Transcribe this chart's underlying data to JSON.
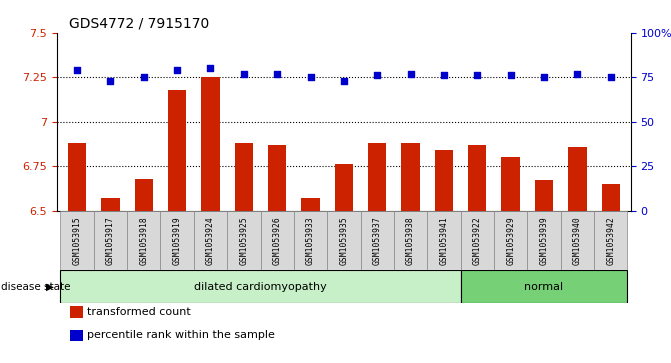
{
  "title": "GDS4772 / 7915170",
  "samples": [
    "GSM1053915",
    "GSM1053917",
    "GSM1053918",
    "GSM1053919",
    "GSM1053924",
    "GSM1053925",
    "GSM1053926",
    "GSM1053933",
    "GSM1053935",
    "GSM1053937",
    "GSM1053938",
    "GSM1053941",
    "GSM1053922",
    "GSM1053929",
    "GSM1053939",
    "GSM1053940",
    "GSM1053942"
  ],
  "bar_values": [
    6.88,
    6.57,
    6.68,
    7.18,
    7.25,
    6.88,
    6.87,
    6.57,
    6.76,
    6.88,
    6.88,
    6.84,
    6.87,
    6.8,
    6.67,
    6.86,
    6.65
  ],
  "dot_values": [
    79,
    73,
    75,
    79,
    80,
    77,
    77,
    75,
    73,
    76,
    77,
    76,
    76,
    76,
    75,
    77,
    75
  ],
  "bar_color": "#cc2200",
  "dot_color": "#0000cc",
  "ylim_left": [
    6.5,
    7.5
  ],
  "ylim_right": [
    0,
    100
  ],
  "yticks_left": [
    6.5,
    6.75,
    7.0,
    7.25,
    7.5
  ],
  "ytick_labels_left": [
    "6.5",
    "6.75",
    "7",
    "7.25",
    "7.5"
  ],
  "yticks_right": [
    0,
    25,
    50,
    75,
    100
  ],
  "ytick_labels_right": [
    "0",
    "25",
    "50",
    "75",
    "100%"
  ],
  "hlines": [
    6.75,
    7.0,
    7.25
  ],
  "disease_groups": [
    {
      "label": "dilated cardiomyopathy",
      "start": 0,
      "end": 12,
      "color": "#c8f0c8"
    },
    {
      "label": "normal",
      "start": 12,
      "end": 17,
      "color": "#76d176"
    }
  ],
  "disease_state_label": "disease state",
  "legend": [
    {
      "color": "#cc2200",
      "label": "transformed count"
    },
    {
      "color": "#0000cc",
      "label": "percentile rank within the sample"
    }
  ],
  "bar_width": 0.55,
  "title_fontsize": 10,
  "tick_label_color_left": "#cc2200",
  "tick_label_color_right": "#0000cc",
  "base_value": 6.5
}
